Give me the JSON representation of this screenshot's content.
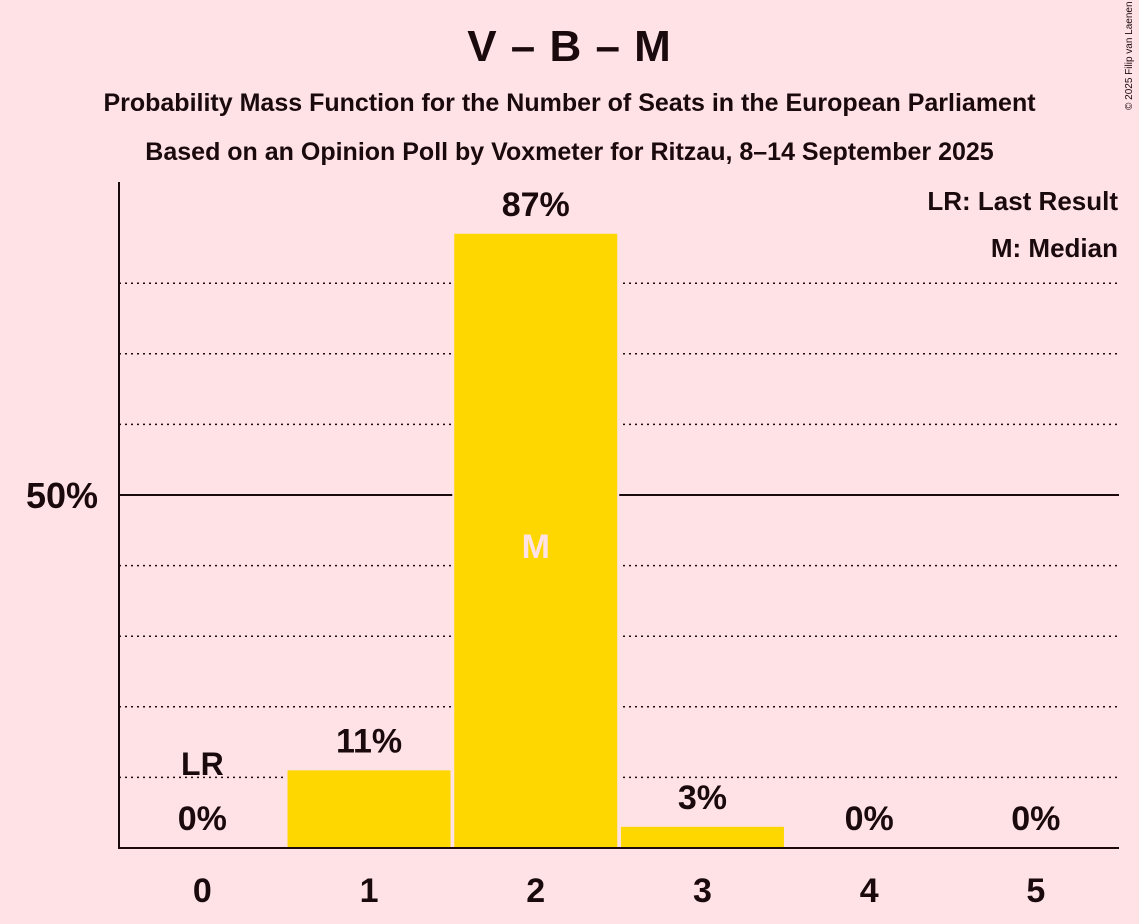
{
  "header": {
    "title": "V – B – M",
    "subtitle1": "Probability Mass Function for the Number of Seats in the European Parliament",
    "subtitle2": "Based on an Opinion Poll by Voxmeter for Ritzau, 8–14 September 2025"
  },
  "copyright": "© 2025 Filip van Laenen",
  "legend": {
    "last_result": "LR: Last Result",
    "median": "M: Median"
  },
  "chart_data": {
    "type": "bar",
    "categories": [
      "0",
      "1",
      "2",
      "3",
      "4",
      "5"
    ],
    "values": [
      0,
      11,
      87,
      3,
      0,
      0
    ],
    "value_labels": [
      "0%",
      "11%",
      "87%",
      "3%",
      "0%",
      "0%"
    ],
    "ylim": [
      0,
      95
    ],
    "ytick_value": 50,
    "ytick_label": "50%",
    "gridlines": [
      10,
      20,
      30,
      40,
      60,
      70,
      80
    ],
    "last_result_category": "0",
    "last_result_label": "LR",
    "median_category": "2",
    "median_label": "M",
    "colors": {
      "bar": "#FFD700",
      "background": "#FFE2E6",
      "text": "#1a0a0e",
      "median_label": "#FFE2E6"
    }
  }
}
